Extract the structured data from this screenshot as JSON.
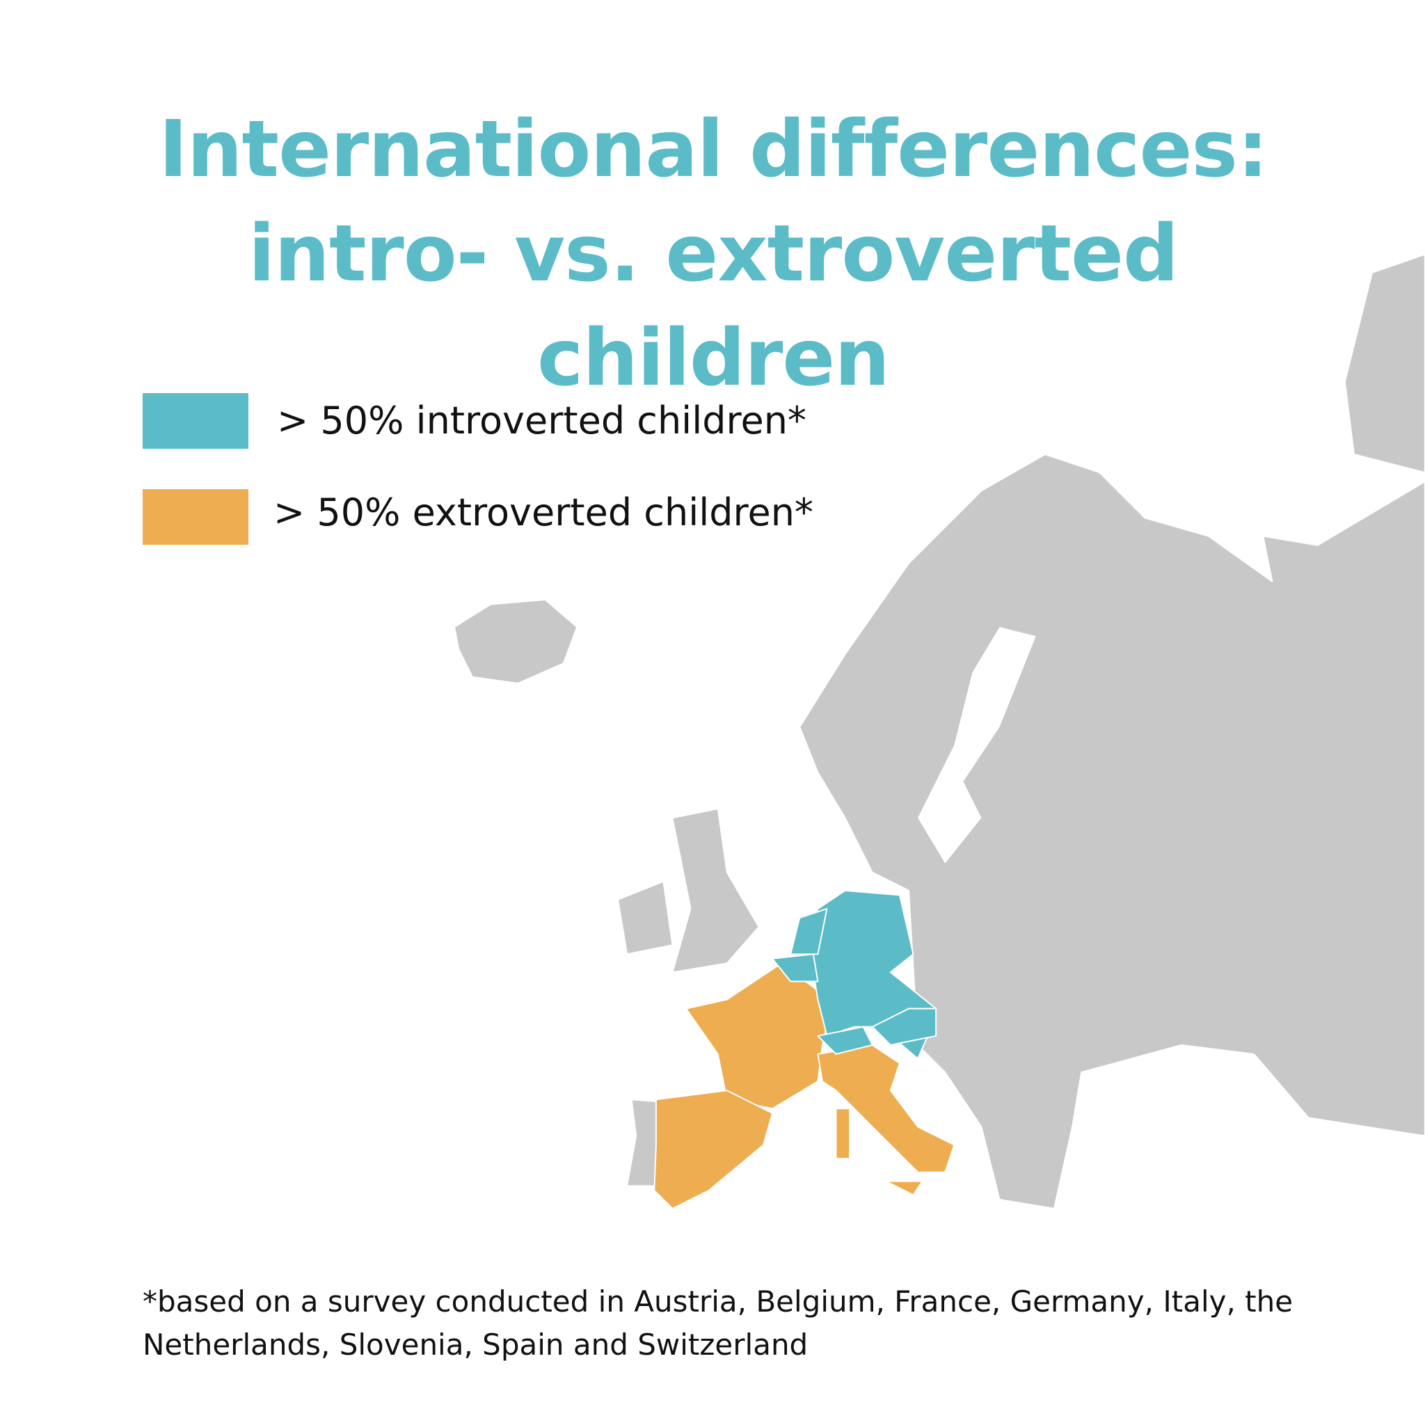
{
  "title": "International differences: intro- vs. extroverted children",
  "legend": [
    {
      "label": "> 50% introverted children*",
      "color": "#5bbcc8"
    },
    {
      "label": "> 50% extroverted children*",
      "color": "#eead50"
    }
  ],
  "footnote": "*based on a survey conducted in Austria, Belgium, France, Germany, Italy, the Netherlands, Slovenia, Spain and Switzerland"
}
